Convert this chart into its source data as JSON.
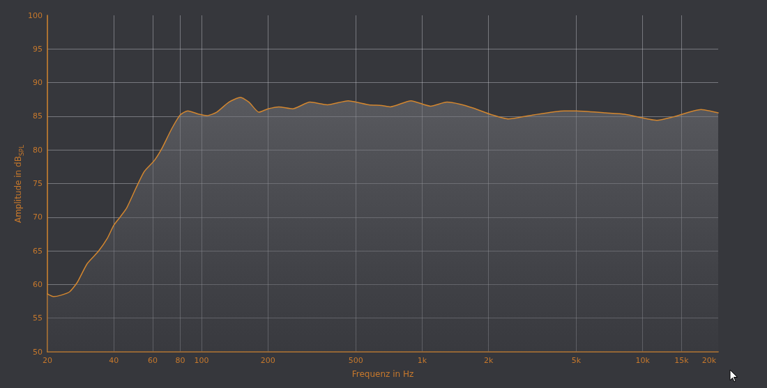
{
  "chart_data": {
    "type": "area",
    "xlabel": "Frequenz in Hz",
    "ylabel": "Amplitude in dB$_{SPL}$",
    "color": "#d4872f",
    "x": [
      20,
      21.3,
      23,
      25.2,
      27.3,
      30.3,
      34,
      37.3,
      40,
      42.9,
      45.8,
      50.2,
      55,
      61,
      65.8,
      73.1,
      80,
      86.6,
      97.5,
      106,
      117,
      133,
      150,
      164,
      182,
      200,
      224,
      258,
      310,
      372,
      462,
      574,
      656,
      716,
      890,
      1092,
      1296,
      1480,
      1710,
      2076,
      2460,
      3060,
      4400,
      5000,
      6800,
      8300,
      11580,
      13740,
      18400,
      22000
    ],
    "values": [
      58.6,
      58.2,
      58.4,
      58.9,
      60.3,
      63.1,
      64.9,
      66.8,
      68.8,
      70.1,
      71.4,
      74.2,
      76.8,
      78.4,
      80.1,
      83.1,
      85.2,
      85.8,
      85.3,
      85.1,
      85.6,
      87.1,
      87.8,
      87.1,
      85.6,
      86.1,
      86.4,
      86.1,
      87.1,
      86.7,
      87.3,
      86.7,
      86.6,
      86.4,
      87.3,
      86.5,
      87.1,
      86.8,
      86.2,
      85.2,
      84.6,
      85.1,
      85.8,
      85.8,
      85.5,
      85.3,
      84.4,
      84.9,
      86.0,
      85.5
    ],
    "xlim": [
      20,
      22000
    ],
    "ylim": [
      50,
      100
    ],
    "xticks": [
      20,
      40,
      60,
      80,
      100,
      200,
      500,
      {
        "value": 1000,
        "label": "1k"
      },
      {
        "value": 2000,
        "label": "2k"
      },
      {
        "value": 5000,
        "label": "5k"
      },
      {
        "value": 10000,
        "label": "10k"
      },
      {
        "value": 15000,
        "label": "15k"
      },
      {
        "value": 20000,
        "label": "20k"
      }
    ],
    "yticks": [
      50,
      55,
      60,
      65,
      70,
      75,
      80,
      85,
      90,
      95,
      100
    ],
    "log": "x",
    "grid": true
  }
}
